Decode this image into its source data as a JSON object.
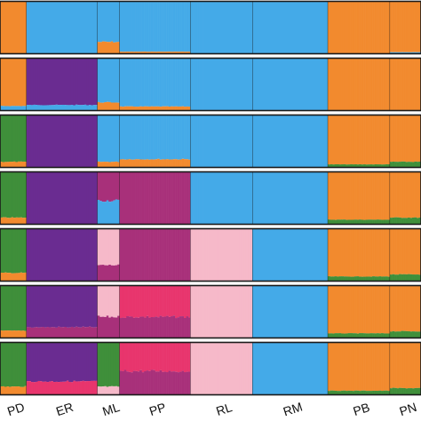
{
  "chart_data": {
    "type": "bar",
    "subtype": "stacked-admixture",
    "title": "",
    "xlabel": "",
    "ylabel": "",
    "ylim": [
      0,
      1
    ],
    "grid": false,
    "legend": "none",
    "populations": [
      {
        "label": "PD",
        "n": 12
      },
      {
        "label": "ER",
        "n": 32
      },
      {
        "label": "ML",
        "n": 10
      },
      {
        "label": "PP",
        "n": 32
      },
      {
        "label": "RL",
        "n": 28
      },
      {
        "label": "RM",
        "n": 34
      },
      {
        "label": "PB",
        "n": 28
      },
      {
        "label": "PN",
        "n": 14
      }
    ],
    "panels": [
      {
        "K": 2,
        "assignment": [
          [
            {
              "c": "orange",
              "q": 1
            }
          ],
          [
            {
              "c": "blue",
              "q": 1
            }
          ],
          [
            {
              "c": "blue",
              "q": 0.78
            },
            {
              "c": "orange",
              "q": 0.22
            }
          ],
          [
            {
              "c": "blue",
              "q": 0.97
            },
            {
              "c": "orange",
              "q": 0.03
            }
          ],
          [
            {
              "c": "blue",
              "q": 1
            }
          ],
          [
            {
              "c": "blue",
              "q": 1
            }
          ],
          [
            {
              "c": "orange",
              "q": 1
            }
          ],
          [
            {
              "c": "orange",
              "q": 0.98
            },
            {
              "c": "blue",
              "q": 0.02
            }
          ]
        ]
      },
      {
        "K": 3,
        "assignment": [
          [
            {
              "c": "orange",
              "q": 0.92
            },
            {
              "c": "blue",
              "q": 0.08
            }
          ],
          [
            {
              "c": "purple",
              "q": 0.9
            },
            {
              "c": "blue",
              "q": 0.1
            }
          ],
          [
            {
              "c": "blue",
              "q": 0.85
            },
            {
              "c": "orange",
              "q": 0.15
            }
          ],
          [
            {
              "c": "blue",
              "q": 0.93
            },
            {
              "c": "orange",
              "q": 0.07
            }
          ],
          [
            {
              "c": "blue",
              "q": 1
            }
          ],
          [
            {
              "c": "blue",
              "q": 1
            }
          ],
          [
            {
              "c": "orange",
              "q": 1
            }
          ],
          [
            {
              "c": "orange",
              "q": 1
            }
          ]
        ]
      },
      {
        "K": 4,
        "assignment": [
          [
            {
              "c": "green",
              "q": 0.9
            },
            {
              "c": "orange",
              "q": 0.1
            }
          ],
          [
            {
              "c": "purple",
              "q": 1
            }
          ],
          [
            {
              "c": "blue",
              "q": 0.9
            },
            {
              "c": "orange",
              "q": 0.1
            }
          ],
          [
            {
              "c": "blue",
              "q": 0.85
            },
            {
              "c": "orange",
              "q": 0.15
            }
          ],
          [
            {
              "c": "blue",
              "q": 1
            }
          ],
          [
            {
              "c": "blue",
              "q": 1
            }
          ],
          [
            {
              "c": "orange",
              "q": 0.95
            },
            {
              "c": "green",
              "q": 0.05
            }
          ],
          [
            {
              "c": "orange",
              "q": 0.9
            },
            {
              "c": "green",
              "q": 0.1
            }
          ]
        ]
      },
      {
        "K": 5,
        "assignment": [
          [
            {
              "c": "green",
              "q": 0.88
            },
            {
              "c": "orange",
              "q": 0.12
            }
          ],
          [
            {
              "c": "purple",
              "q": 1
            }
          ],
          [
            {
              "c": "magenta",
              "q": 0.55
            },
            {
              "c": "blue",
              "q": 0.45
            }
          ],
          [
            {
              "c": "magenta",
              "q": 1
            }
          ],
          [
            {
              "c": "blue",
              "q": 1
            }
          ],
          [
            {
              "c": "blue",
              "q": 1
            }
          ],
          [
            {
              "c": "orange",
              "q": 0.92
            },
            {
              "c": "green",
              "q": 0.08
            }
          ],
          [
            {
              "c": "orange",
              "q": 0.88
            },
            {
              "c": "green",
              "q": 0.12
            }
          ]
        ]
      },
      {
        "K": 6,
        "assignment": [
          [
            {
              "c": "green",
              "q": 0.85
            },
            {
              "c": "orange",
              "q": 0.15
            }
          ],
          [
            {
              "c": "purple",
              "q": 1
            }
          ],
          [
            {
              "c": "pink",
              "q": 0.7
            },
            {
              "c": "magenta",
              "q": 0.3
            }
          ],
          [
            {
              "c": "magenta",
              "q": 1
            }
          ],
          [
            {
              "c": "pink",
              "q": 1
            }
          ],
          [
            {
              "c": "blue",
              "q": 1
            }
          ],
          [
            {
              "c": "orange",
              "q": 0.92
            },
            {
              "c": "green",
              "q": 0.08
            }
          ],
          [
            {
              "c": "orange",
              "q": 0.88
            },
            {
              "c": "green",
              "q": 0.12
            }
          ]
        ]
      },
      {
        "K": 7,
        "assignment": [
          [
            {
              "c": "green",
              "q": 0.87
            },
            {
              "c": "orange",
              "q": 0.13
            }
          ],
          [
            {
              "c": "purple",
              "q": 0.8
            },
            {
              "c": "magenta",
              "q": 0.2
            }
          ],
          [
            {
              "c": "pink",
              "q": 0.6
            },
            {
              "c": "magenta",
              "q": 0.4
            }
          ],
          [
            {
              "c": "hotpink",
              "q": 0.6
            },
            {
              "c": "magenta",
              "q": 0.4
            }
          ],
          [
            {
              "c": "pink",
              "q": 1
            }
          ],
          [
            {
              "c": "blue",
              "q": 1
            }
          ],
          [
            {
              "c": "orange",
              "q": 0.92
            },
            {
              "c": "green",
              "q": 0.08
            }
          ],
          [
            {
              "c": "orange",
              "q": 0.88
            },
            {
              "c": "green",
              "q": 0.12
            }
          ]
        ]
      },
      {
        "K": 8,
        "assignment": [
          [
            {
              "c": "green",
              "q": 0.85
            },
            {
              "c": "orange",
              "q": 0.15
            }
          ],
          [
            {
              "c": "purple",
              "q": 0.75
            },
            {
              "c": "hotpink",
              "q": 0.25
            }
          ],
          [
            {
              "c": "green",
              "q": 0.85
            },
            {
              "c": "pink",
              "q": 0.15
            }
          ],
          [
            {
              "c": "hotpink",
              "q": 0.55
            },
            {
              "c": "magenta",
              "q": 0.45
            }
          ],
          [
            {
              "c": "pink",
              "q": 1
            }
          ],
          [
            {
              "c": "blue",
              "q": 1
            }
          ],
          [
            {
              "c": "orange",
              "q": 0.93
            },
            {
              "c": "green",
              "q": 0.07
            }
          ],
          [
            {
              "c": "orange",
              "q": 0.88
            },
            {
              "c": "green",
              "q": 0.12
            }
          ]
        ]
      }
    ]
  },
  "colors": {
    "orange": "#f28a2e",
    "blue": "#44aae8",
    "purple": "#6a2c91",
    "green": "#3f8f3a",
    "magenta": "#a8307a",
    "pink": "#f6b9c9",
    "hotpink": "#e8356d",
    "separator": "#1a1a1a"
  }
}
